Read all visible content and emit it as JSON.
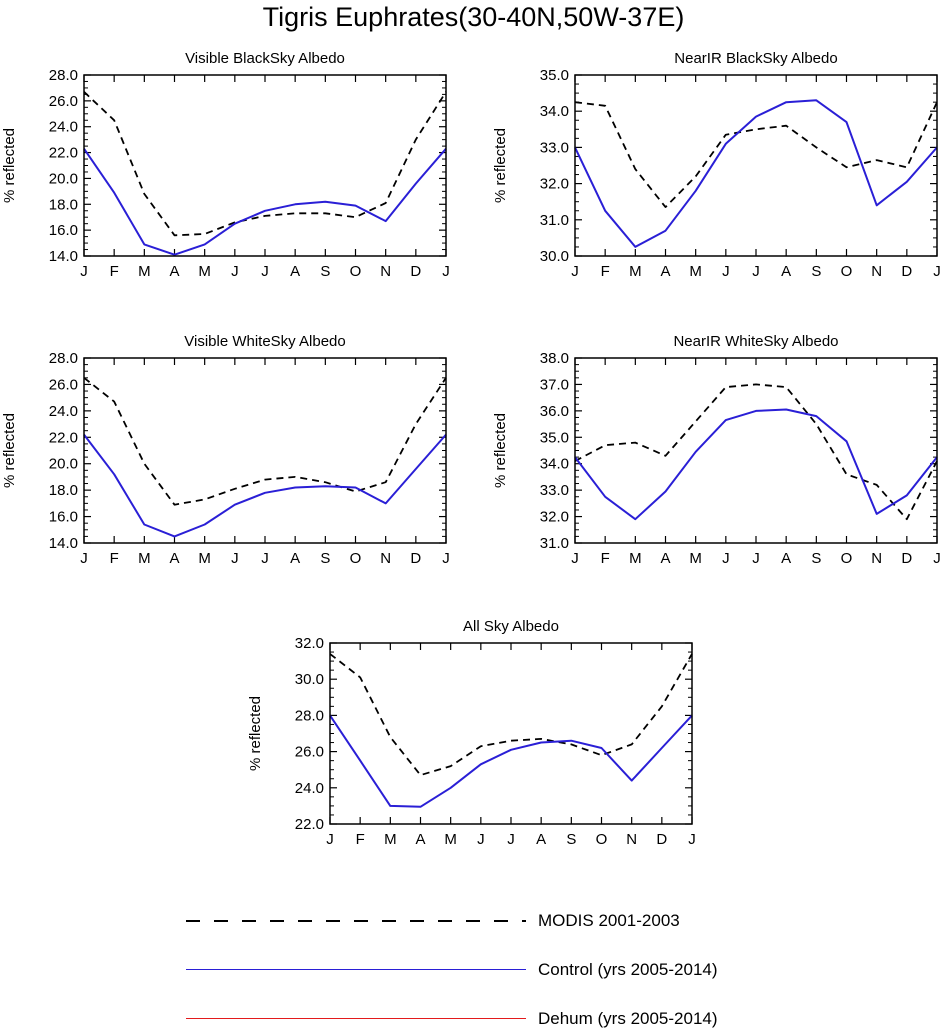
{
  "title": "Tigris Euphrates(30-40N,50W-37E)",
  "colors": {
    "modis": "#000000",
    "control": "#2a1fd6",
    "dehum": "#e31a1c"
  },
  "legend": [
    {
      "label": "MODIS 2001-2003",
      "style": "dashed",
      "color": "#000000"
    },
    {
      "label": "Control (yrs 2005-2014)",
      "style": "solid",
      "color": "#2a1fd6"
    },
    {
      "label": "Dehum (yrs 2005-2014)",
      "style": "solid",
      "color": "#e31a1c"
    }
  ],
  "chart_data": [
    {
      "type": "line",
      "title": "Visible BlackSky Albedo",
      "ylabel": "% reflected",
      "categories": [
        "J",
        "F",
        "M",
        "A",
        "M",
        "J",
        "J",
        "A",
        "S",
        "O",
        "N",
        "D",
        "J"
      ],
      "ylim": [
        14.0,
        28.0
      ],
      "yticks": [
        "14.0",
        "16.0",
        "18.0",
        "20.0",
        "22.0",
        "24.0",
        "26.0",
        "28.0"
      ],
      "series": [
        {
          "name": "MODIS 2001-2003",
          "style": "dashed",
          "values": [
            26.7,
            24.5,
            18.8,
            15.6,
            15.7,
            16.6,
            17.1,
            17.3,
            17.3,
            17.0,
            18.1,
            23.0,
            26.7
          ]
        },
        {
          "name": "Control (yrs 2005-2014)",
          "style": "solid",
          "values": [
            22.3,
            18.9,
            14.9,
            14.1,
            14.9,
            16.5,
            17.5,
            18.0,
            18.2,
            17.9,
            16.7,
            19.6,
            22.3
          ]
        }
      ]
    },
    {
      "type": "line",
      "title": "NearIR BlackSky Albedo",
      "ylabel": "% reflected",
      "categories": [
        "J",
        "F",
        "M",
        "A",
        "M",
        "J",
        "J",
        "A",
        "S",
        "O",
        "N",
        "D",
        "J"
      ],
      "ylim": [
        30.0,
        35.0
      ],
      "yticks": [
        "30.0",
        "31.0",
        "32.0",
        "33.0",
        "34.0",
        "35.0"
      ],
      "series": [
        {
          "name": "MODIS 2001-2003",
          "style": "dashed",
          "values": [
            34.25,
            34.15,
            32.4,
            31.35,
            32.2,
            33.35,
            33.5,
            33.6,
            33.0,
            32.45,
            32.65,
            32.45,
            34.25
          ]
        },
        {
          "name": "Control (yrs 2005-2014)",
          "style": "solid",
          "values": [
            33.0,
            31.25,
            30.25,
            30.7,
            31.8,
            33.1,
            33.85,
            34.25,
            34.3,
            33.7,
            31.4,
            32.05,
            33.0
          ]
        }
      ]
    },
    {
      "type": "line",
      "title": "Visible WhiteSky Albedo",
      "ylabel": "% reflected",
      "categories": [
        "J",
        "F",
        "M",
        "A",
        "M",
        "J",
        "J",
        "A",
        "S",
        "O",
        "N",
        "D",
        "J"
      ],
      "ylim": [
        14.0,
        28.0
      ],
      "yticks": [
        "14.0",
        "16.0",
        "18.0",
        "20.0",
        "22.0",
        "24.0",
        "26.0",
        "28.0"
      ],
      "series": [
        {
          "name": "MODIS 2001-2003",
          "style": "dashed",
          "values": [
            26.5,
            24.7,
            20.0,
            16.9,
            17.3,
            18.1,
            18.8,
            19.0,
            18.6,
            17.9,
            18.6,
            23.0,
            26.5
          ]
        },
        {
          "name": "Control (yrs 2005-2014)",
          "style": "solid",
          "values": [
            22.2,
            19.2,
            15.4,
            14.5,
            15.4,
            16.9,
            17.8,
            18.2,
            18.3,
            18.2,
            17.0,
            19.6,
            22.2
          ]
        }
      ]
    },
    {
      "type": "line",
      "title": "NearIR WhiteSky Albedo",
      "ylabel": "% reflected",
      "categories": [
        "J",
        "F",
        "M",
        "A",
        "M",
        "J",
        "J",
        "A",
        "S",
        "O",
        "N",
        "D",
        "J"
      ],
      "ylim": [
        31.0,
        38.0
      ],
      "yticks": [
        "31.0",
        "32.0",
        "33.0",
        "34.0",
        "35.0",
        "36.0",
        "37.0",
        "38.0"
      ],
      "series": [
        {
          "name": "MODIS 2001-2003",
          "style": "dashed",
          "values": [
            34.1,
            34.7,
            34.8,
            34.3,
            35.6,
            36.9,
            37.0,
            36.9,
            35.5,
            33.6,
            33.2,
            31.9,
            34.1
          ]
        },
        {
          "name": "Control (yrs 2005-2014)",
          "style": "solid",
          "values": [
            34.25,
            32.75,
            31.9,
            32.95,
            34.45,
            35.65,
            36.0,
            36.05,
            35.8,
            34.85,
            32.1,
            32.8,
            34.25
          ]
        }
      ]
    },
    {
      "type": "line",
      "title": "All Sky Albedo",
      "ylabel": "% reflected",
      "categories": [
        "J",
        "F",
        "M",
        "A",
        "M",
        "J",
        "J",
        "A",
        "S",
        "O",
        "N",
        "D",
        "J"
      ],
      "ylim": [
        22.0,
        32.0
      ],
      "yticks": [
        "22.0",
        "24.0",
        "26.0",
        "28.0",
        "30.0",
        "32.0"
      ],
      "series": [
        {
          "name": "MODIS 2001-2003",
          "style": "dashed",
          "values": [
            31.4,
            30.1,
            26.8,
            24.7,
            25.2,
            26.3,
            26.6,
            26.7,
            26.4,
            25.8,
            26.4,
            28.5,
            31.4
          ]
        },
        {
          "name": "Control (yrs 2005-2014)",
          "style": "solid",
          "values": [
            28.0,
            25.5,
            23.0,
            22.95,
            24.0,
            25.3,
            26.1,
            26.5,
            26.6,
            26.2,
            24.4,
            26.2,
            28.0
          ]
        }
      ]
    }
  ]
}
